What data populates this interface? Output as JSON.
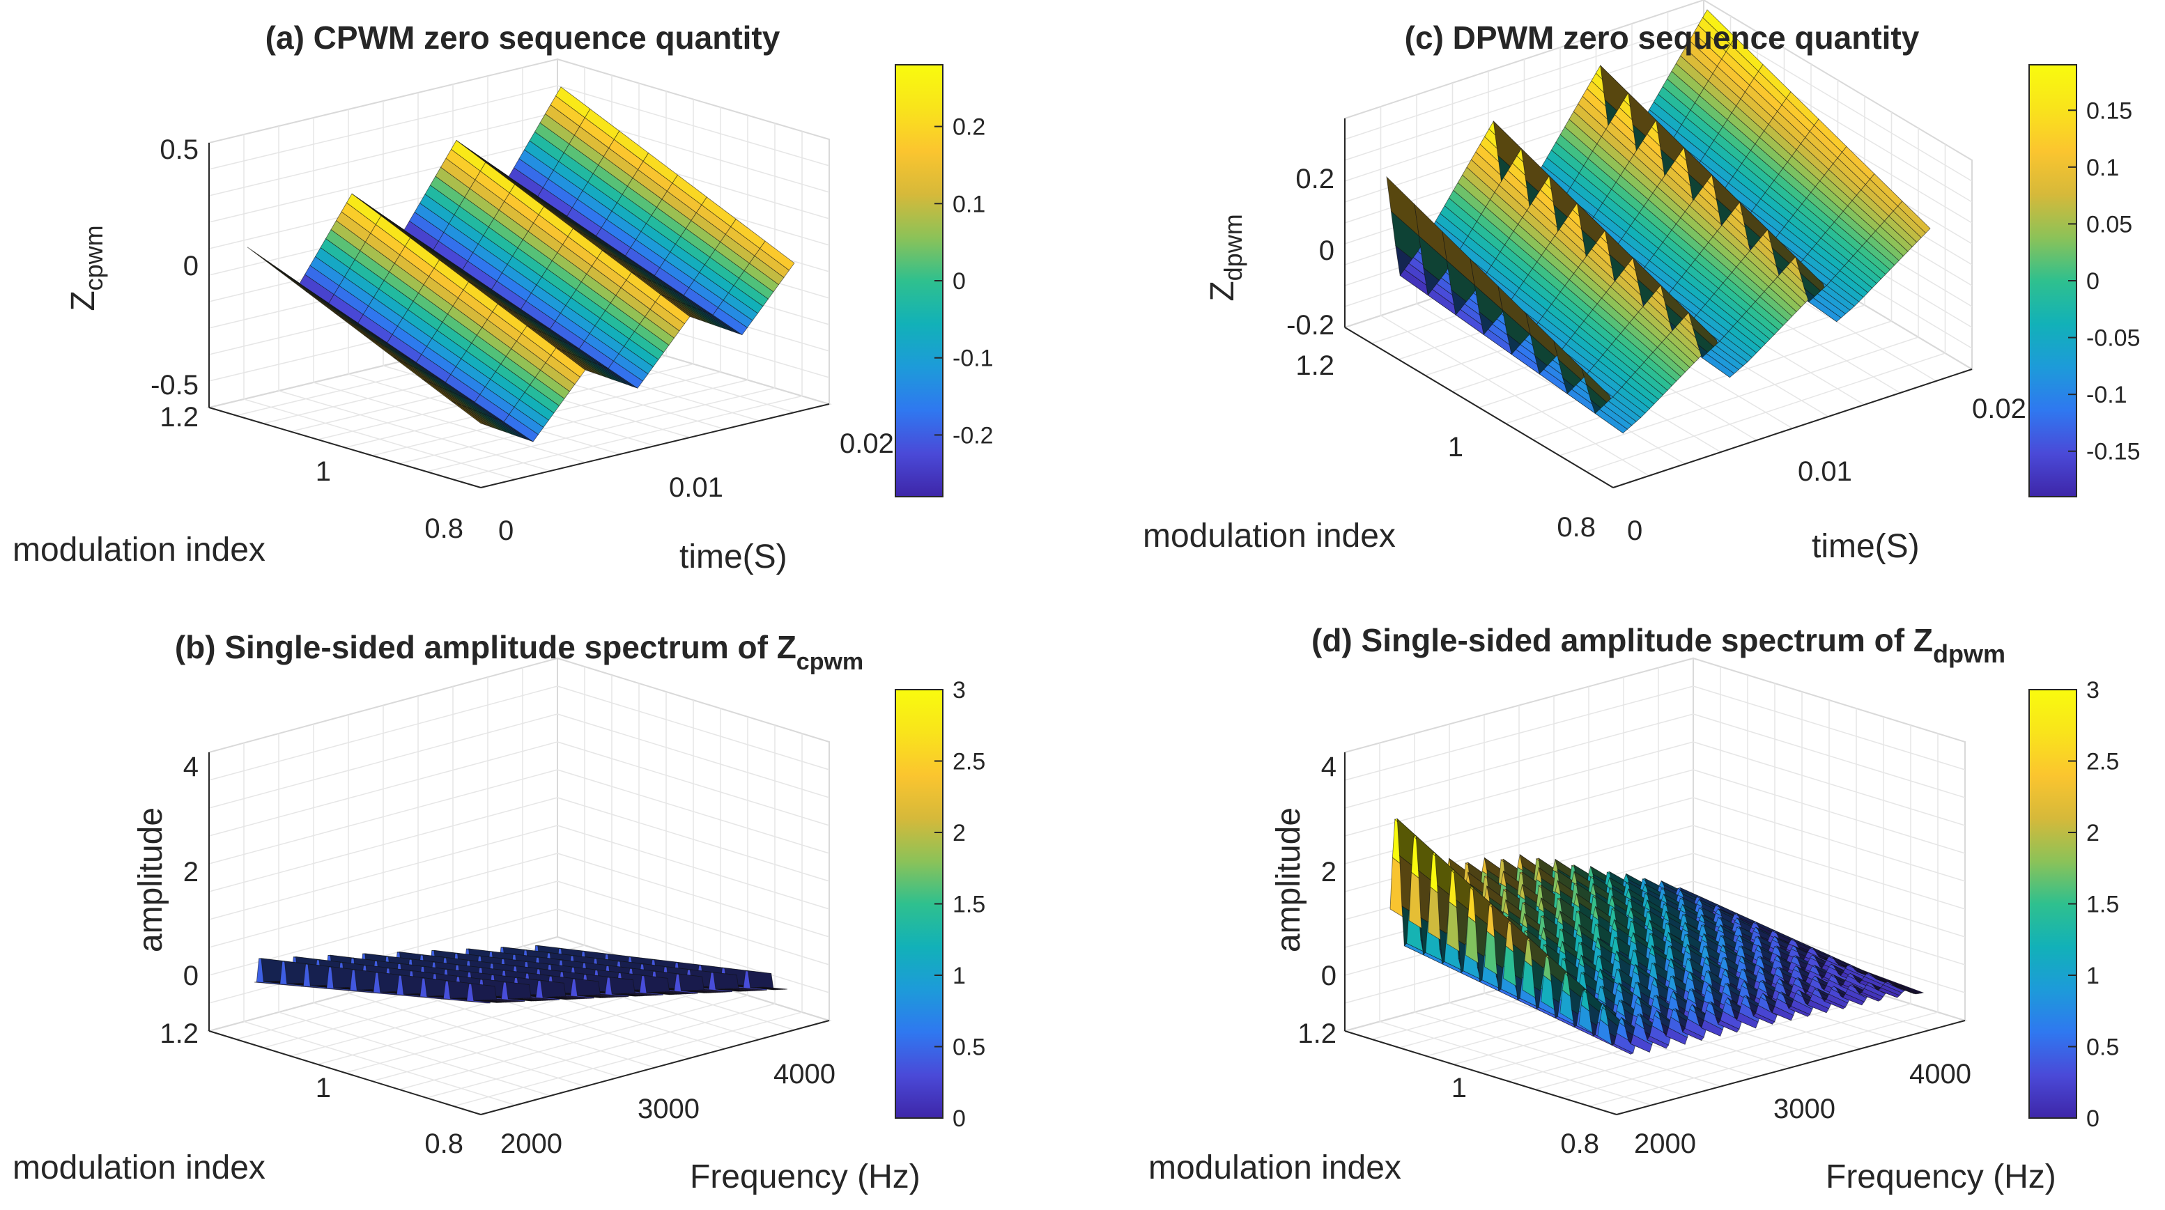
{
  "colorscale": [
    "#3e26a8",
    "#4a4ad8",
    "#2f78f0",
    "#1d9bd9",
    "#12b1b8",
    "#2fc08e",
    "#8cc258",
    "#d6b93a",
    "#fbc52f",
    "#f9e41b",
    "#f9fb0e"
  ],
  "chart_data": [
    {
      "id": "a",
      "type": "surface",
      "title": "(a) CPWM zero sequence quantity",
      "xlabel": "time(S)",
      "ylabel": "modulation index",
      "zlabel": "Z",
      "zlabel_sub": "cpwm",
      "xlim": [
        0,
        0.02
      ],
      "ylim": [
        0.8,
        1.2
      ],
      "zlim": [
        -0.5,
        0.5
      ],
      "x_ticks": [
        "0",
        "0.01",
        "0.02"
      ],
      "y_ticks": [
        "0.8",
        "1",
        "1.2"
      ],
      "z_ticks": [
        "-0.5",
        "0",
        "0.5"
      ],
      "colorbar": {
        "min": -0.28,
        "max": 0.28,
        "ticks": [
          "-0.2",
          "-0.1",
          "0",
          "0.1",
          "0.2"
        ]
      },
      "waveform": "triangle",
      "cycles": 3,
      "amplitude_at_m": {
        "m": [
          0.8,
          1.2
        ],
        "peak": [
          0.2,
          0.28
        ]
      }
    },
    {
      "id": "b",
      "type": "surface",
      "title": "(b) Single-sided amplitude spectrum of Z",
      "title_sub": "cpwm",
      "xlabel": "Frequency (Hz)",
      "ylabel": "modulation index",
      "zlabel": "amplitude",
      "xlim": [
        1800,
        4400
      ],
      "ylim": [
        0.8,
        1.2
      ],
      "zlim": [
        0,
        4
      ],
      "x_ticks": [
        "2000",
        "3000",
        "4000"
      ],
      "y_ticks": [
        "0.8",
        "1",
        "1.2"
      ],
      "z_ticks": [
        "0",
        "2",
        "4"
      ],
      "colorbar": {
        "min": 0,
        "max": 3,
        "ticks": [
          "0",
          "0.5",
          "1",
          "1.5",
          "2",
          "2.5",
          "3"
        ]
      },
      "peak_frequencies_hz": [
        1850,
        2150,
        2450,
        2750,
        3050,
        3350,
        3650,
        3950,
        4250
      ],
      "peak_amplitude": 0.45
    },
    {
      "id": "c",
      "type": "surface",
      "title": "(c) DPWM zero sequence quantity",
      "xlabel": "time(S)",
      "ylabel": "modulation index",
      "zlabel": "Z",
      "zlabel_sub": "dpwm",
      "xlim": [
        0,
        0.02
      ],
      "ylim": [
        0.8,
        1.2
      ],
      "zlim": [
        -0.2,
        0.2
      ],
      "x_ticks": [
        "0",
        "0.01",
        "0.02"
      ],
      "y_ticks": [
        "0.8",
        "1",
        "1.2"
      ],
      "z_ticks": [
        "-0.2",
        "0",
        "0.2"
      ],
      "colorbar": {
        "min": -0.19,
        "max": 0.19,
        "ticks": [
          "-0.15",
          "-0.1",
          "-0.05",
          "0",
          "0.05",
          "0.1",
          "0.15"
        ]
      },
      "waveform": "sawtooth",
      "cycles": 3,
      "amplitude_at_m": {
        "m": [
          0.8,
          1.2
        ],
        "peak": [
          0.08,
          0.19
        ]
      }
    },
    {
      "id": "d",
      "type": "surface",
      "title": "(d) Single-sided amplitude spectrum of Z",
      "title_sub": "dpwm",
      "xlabel": "Frequency (Hz)",
      "ylabel": "modulation index",
      "zlabel": "amplitude",
      "xlim": [
        1800,
        4400
      ],
      "ylim": [
        0.8,
        1.2
      ],
      "zlim": [
        0,
        4
      ],
      "x_ticks": [
        "2000",
        "3000",
        "4000"
      ],
      "y_ticks": [
        "0.8",
        "1",
        "1.2"
      ],
      "z_ticks": [
        "0",
        "2",
        "4"
      ],
      "colorbar": {
        "min": 0,
        "max": 3,
        "ticks": [
          "0",
          "0.5",
          "1",
          "1.5",
          "2",
          "2.5",
          "3"
        ]
      },
      "peak_frequencies_hz": [
        1850,
        2000,
        2150,
        2300,
        2450,
        2600,
        2750,
        2900,
        3050,
        3200,
        3350,
        3500,
        3650,
        3800,
        3950,
        4100,
        4250
      ],
      "peak_amplitudes": [
        3.2,
        2.2,
        2.2,
        2.1,
        2.0,
        1.95,
        1.9,
        1.85,
        1.75,
        1.6,
        1.45,
        1.3,
        1.15,
        1.0,
        0.85,
        0.7,
        0.5
      ]
    }
  ]
}
